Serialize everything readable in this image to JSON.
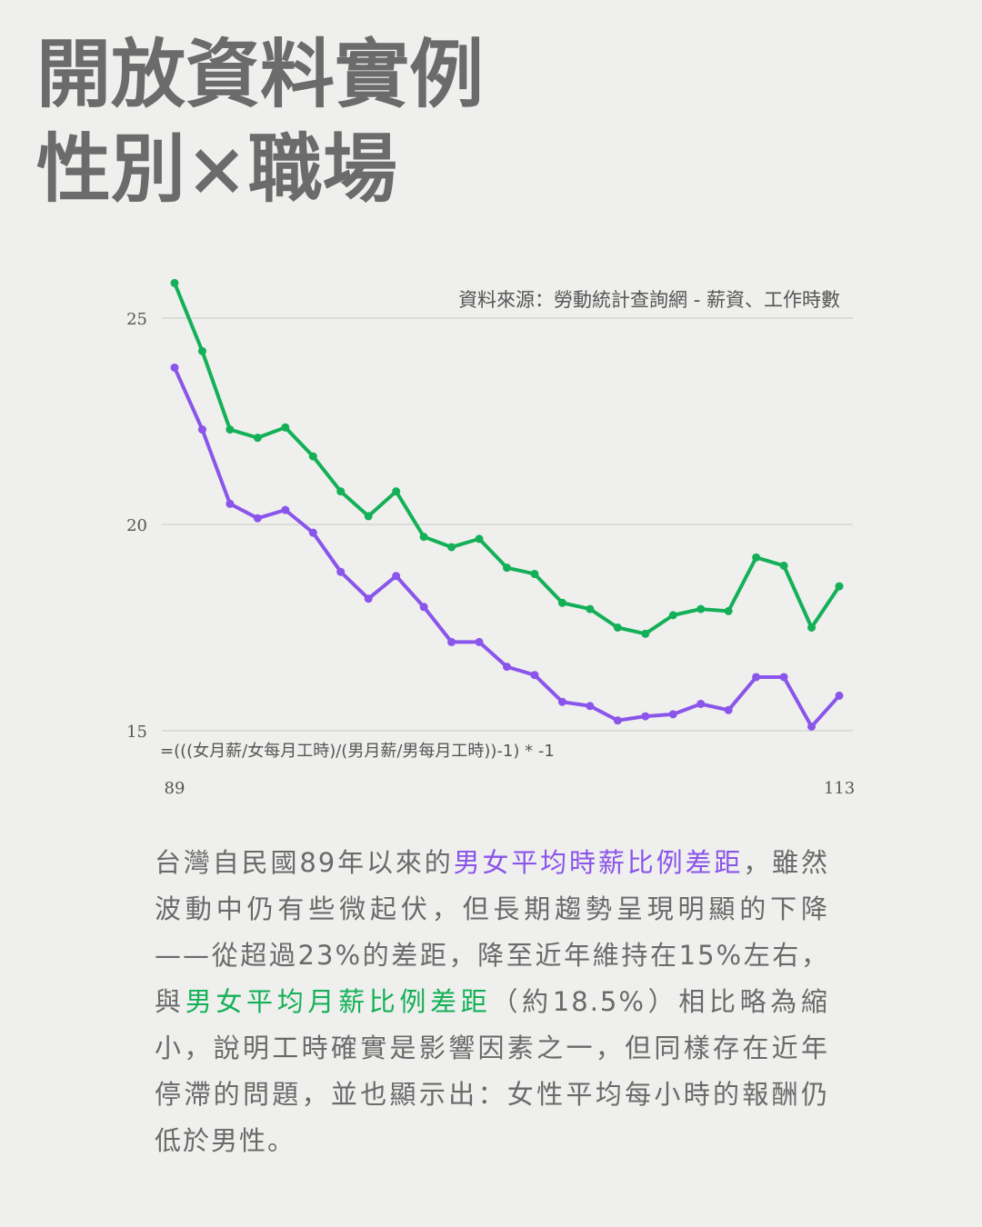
{
  "title": {
    "line1": "開放資料實例",
    "line2": "性別×職場"
  },
  "source_note": "資料來源：勞動統計查詢網 - 薪資、工作時數",
  "formula_note": "=(((女月薪/女每月工時)/(男月薪/男每月工時))-1) * -1",
  "body": {
    "p1": "台灣自民國89年以來的",
    "hl1": "男女平均時薪比例差距",
    "p2": "，雖然波動中仍有些微起伏，但長期趨勢呈現明顯的下降——從超過23%的差距，降至近年維持在15%左右，與",
    "hl2": "男女平均月薪比例差距",
    "p3": "（約18.5%）相比略為縮小，說明工時確實是影響因素之一，但同樣存在近年停滯的問題，並也顯示出：女性平均每小時的報酬仍低於男性。"
  },
  "colors": {
    "hourly": "#8a55ea",
    "monthly": "#14b058",
    "grid": "#d6d6d4",
    "text": "#555555"
  },
  "chart_data": {
    "type": "line",
    "x": [
      89,
      90,
      91,
      92,
      93,
      94,
      95,
      96,
      97,
      98,
      99,
      100,
      101,
      102,
      103,
      104,
      105,
      106,
      107,
      108,
      109,
      110,
      111,
      112,
      113
    ],
    "x_tick_labels": [
      "89",
      "113"
    ],
    "y_ticks": [
      15,
      20,
      25
    ],
    "ylim": [
      15,
      26
    ],
    "grid": true,
    "series": [
      {
        "key": "monthly",
        "values": [
          25.85,
          24.2,
          22.3,
          22.1,
          22.35,
          21.65,
          20.8,
          20.2,
          20.8,
          19.7,
          19.45,
          19.65,
          18.95,
          18.8,
          18.1,
          17.95,
          17.5,
          17.35,
          17.8,
          17.95,
          17.9,
          19.2,
          19.0,
          17.5,
          18.5
        ]
      },
      {
        "key": "hourly",
        "values": [
          23.8,
          22.3,
          20.5,
          20.15,
          20.35,
          19.8,
          18.85,
          18.2,
          18.75,
          18.0,
          17.15,
          17.15,
          16.55,
          16.35,
          15.7,
          15.6,
          15.25,
          15.35,
          15.4,
          15.65,
          15.5,
          16.3,
          16.3,
          15.1,
          15.85
        ]
      }
    ]
  }
}
